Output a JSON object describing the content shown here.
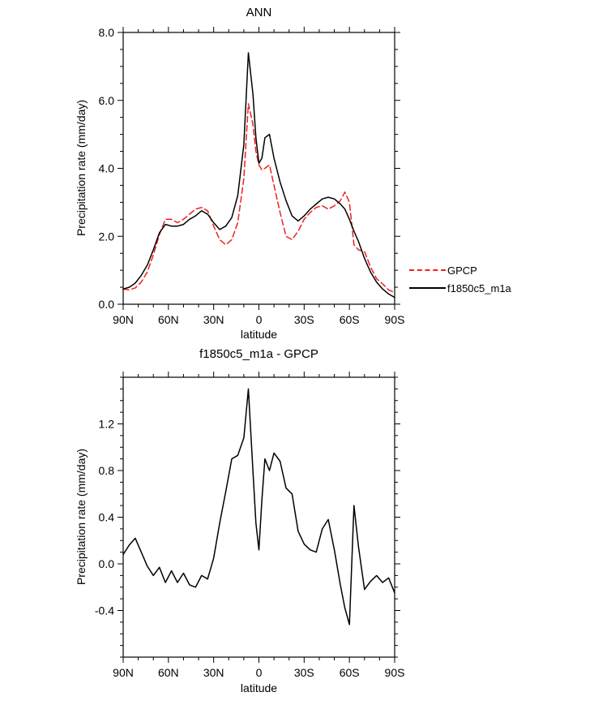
{
  "figure": {
    "background": "#ffffff",
    "line_color": "#000000",
    "obs_color": "#ee2020"
  },
  "chart_data": [
    {
      "type": "line",
      "title": "ANN",
      "xlabel": "latitude",
      "ylabel": "Precipitation rate (mm/day)",
      "xlim": [
        90,
        -90
      ],
      "ylim": [
        0,
        8
      ],
      "x_major_ticks": [
        90,
        60,
        30,
        0,
        -30,
        -60,
        -90
      ],
      "x_tick_labels": [
        "90N",
        "60N",
        "30N",
        "0",
        "30S",
        "60S",
        "90S"
      ],
      "x_minor_step": 10,
      "y_major_ticks": [
        0,
        2,
        4,
        6,
        8
      ],
      "y_tick_labels": [
        "0.0",
        "2.0",
        "4.0",
        "6.0",
        "8.0"
      ],
      "y_minor_step": 0.5,
      "legend_position": "right-outside",
      "x": [
        90,
        86,
        82,
        78,
        74,
        70,
        66,
        62,
        58,
        54,
        50,
        46,
        42,
        38,
        34,
        30,
        26,
        22,
        18,
        14,
        10,
        7,
        4,
        2,
        0,
        -2,
        -4,
        -7,
        -10,
        -14,
        -18,
        -22,
        -26,
        -30,
        -34,
        -38,
        -42,
        -46,
        -50,
        -54,
        -57,
        -60,
        -63,
        -66,
        -70,
        -74,
        -78,
        -82,
        -86,
        -90
      ],
      "series": [
        {
          "name": "GPCP",
          "color": "#ee2020",
          "dash": "7,4",
          "values": [
            0.45,
            0.42,
            0.48,
            0.65,
            0.95,
            1.45,
            2.05,
            2.5,
            2.5,
            2.4,
            2.5,
            2.65,
            2.8,
            2.85,
            2.75,
            2.3,
            1.9,
            1.75,
            1.9,
            2.4,
            3.7,
            5.9,
            5.3,
            4.5,
            4.1,
            3.95,
            4.0,
            4.1,
            3.5,
            2.7,
            2.0,
            1.9,
            2.15,
            2.5,
            2.7,
            2.85,
            2.9,
            2.8,
            2.9,
            3.05,
            3.3,
            3.0,
            1.75,
            1.6,
            1.55,
            1.1,
            0.75,
            0.6,
            0.42,
            0.35
          ]
        },
        {
          "name": "f1850c5_m1a",
          "color": "#000000",
          "dash": "",
          "values": [
            0.45,
            0.5,
            0.62,
            0.85,
            1.15,
            1.6,
            2.1,
            2.35,
            2.3,
            2.3,
            2.35,
            2.5,
            2.6,
            2.75,
            2.65,
            2.4,
            2.2,
            2.3,
            2.55,
            3.2,
            4.7,
            7.4,
            6.2,
            4.9,
            4.15,
            4.3,
            4.9,
            5.0,
            4.3,
            3.6,
            3.05,
            2.6,
            2.45,
            2.6,
            2.8,
            2.95,
            3.1,
            3.15,
            3.1,
            2.95,
            2.8,
            2.5,
            2.15,
            1.85,
            1.35,
            0.95,
            0.65,
            0.45,
            0.3,
            0.2
          ]
        }
      ]
    },
    {
      "type": "line",
      "title": "f1850c5_m1a - GPCP",
      "xlabel": "latitude",
      "ylabel": "Precipitation rate (mm/day)",
      "xlim": [
        90,
        -90
      ],
      "ylim": [
        -0.8,
        1.6
      ],
      "x_major_ticks": [
        90,
        60,
        30,
        0,
        -30,
        -60,
        -90
      ],
      "x_tick_labels": [
        "90N",
        "60N",
        "30N",
        "0",
        "30S",
        "60S",
        "90S"
      ],
      "x_minor_step": 10,
      "y_major_ticks": [
        -0.4,
        0,
        0.4,
        0.8,
        1.2
      ],
      "y_tick_labels": [
        "-0.4",
        "0.0",
        "0.4",
        "0.8",
        "1.2"
      ],
      "y_minor_step": 0.1,
      "x": [
        90,
        86,
        82,
        78,
        74,
        70,
        66,
        62,
        58,
        54,
        50,
        46,
        42,
        38,
        34,
        30,
        26,
        22,
        18,
        14,
        10,
        7,
        4,
        2,
        0,
        -2,
        -4,
        -7,
        -10,
        -14,
        -18,
        -22,
        -26,
        -30,
        -34,
        -38,
        -42,
        -46,
        -50,
        -54,
        -57,
        -60,
        -63,
        -66,
        -70,
        -74,
        -78,
        -82,
        -86,
        -90
      ],
      "series": [
        {
          "name": "f1850c5_m1a - GPCP",
          "color": "#000000",
          "dash": "",
          "values": [
            0.08,
            0.16,
            0.22,
            0.1,
            -0.02,
            -0.1,
            -0.03,
            -0.16,
            -0.06,
            -0.16,
            -0.08,
            -0.18,
            -0.2,
            -0.1,
            -0.13,
            0.05,
            0.35,
            0.62,
            0.9,
            0.93,
            1.08,
            1.5,
            0.8,
            0.35,
            0.12,
            0.55,
            0.9,
            0.8,
            0.95,
            0.88,
            0.65,
            0.6,
            0.28,
            0.17,
            0.12,
            0.1,
            0.3,
            0.38,
            0.12,
            -0.18,
            -0.38,
            -0.52,
            0.5,
            0.15,
            -0.22,
            -0.15,
            -0.1,
            -0.16,
            -0.12,
            -0.25
          ]
        }
      ]
    }
  ]
}
